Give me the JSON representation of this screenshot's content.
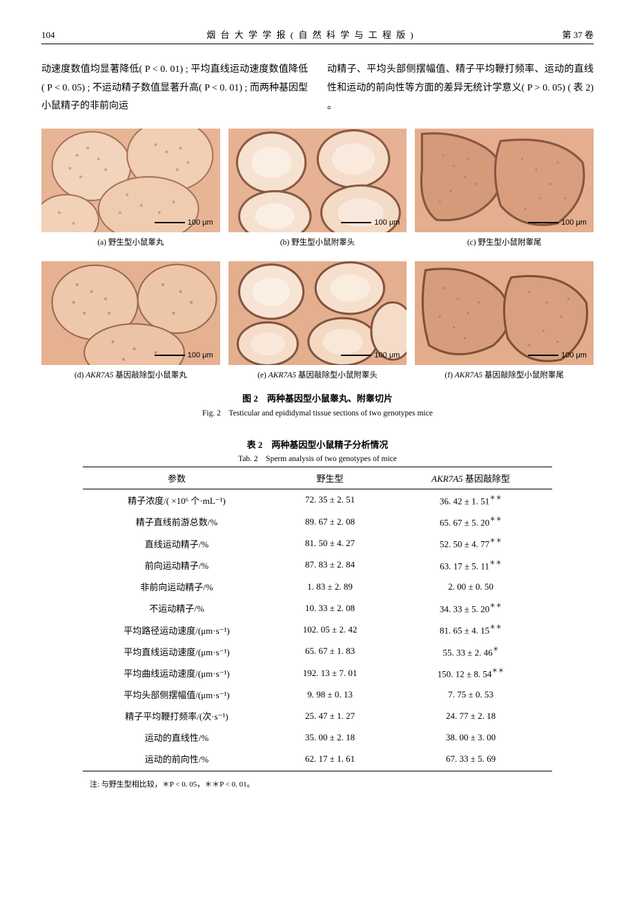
{
  "header": {
    "page_number": "104",
    "journal": "烟 台 大 学 学 报 ( 自 然 科 学 与 工 程 版 )",
    "volume": "第 37 卷"
  },
  "paragraph": {
    "left": "动速度数值均显著降低( P < 0. 01) ; 平均直线运动速度数值降低( P < 0. 05) ; 不运动精子数值显著升高( P < 0. 01) ; 而两种基因型小鼠精子的非前向运",
    "right": "动精子、平均头部侧摆幅值、精子平均鞭打频率、运动的直线性和运动的前向性等方面的差异无统计学意义( P > 0. 05) ( 表 2) 。"
  },
  "figure": {
    "scalebar_label": "100 μm",
    "subcaptions": [
      "(a) 野生型小鼠睾丸",
      "(b) 野生型小鼠附睾头",
      "(c) 野生型小鼠附睾尾",
      "(d) AKR7A5 基因敲除型小鼠睾丸",
      "(e) AKR7A5 基因敲除型小鼠附睾头",
      "(f) AKR7A5 基因敲除型小鼠附睾尾"
    ],
    "caption_cn": "图 2　两种基因型小鼠睾丸、附睾切片",
    "caption_en": "Fig. 2　Testicular and epididymal tissue sections of two genotypes mice",
    "image_colors": {
      "background": "#e8b89a",
      "tissue_light": "#f5dcc8",
      "tissue_mid": "#dba17f",
      "tissue_dark": "#a0654c",
      "border": "#7c523f"
    }
  },
  "table": {
    "caption_cn": "表 2　两种基因型小鼠精子分析情况",
    "caption_en": "Tab. 2　Sperm analysis of two genotypes of mice",
    "columns": [
      "参数",
      "野生型",
      "AKR7A5 基因敲除型"
    ],
    "rows": [
      {
        "param": "精子浓度/( ×10⁶ 个·mL⁻¹)",
        "wt": "72. 35 ± 2. 51",
        "ko": "36. 42 ± 1. 51＊＊"
      },
      {
        "param": "精子直线前游总数/%",
        "wt": "89. 67 ± 2. 08",
        "ko": "65. 67 ± 5. 20＊＊"
      },
      {
        "param": "直线运动精子/%",
        "wt": "81. 50 ± 4. 27",
        "ko": "52. 50 ± 4. 77＊＊"
      },
      {
        "param": "前向运动精子/%",
        "wt": "87. 83 ± 2. 84",
        "ko": "63. 17 ± 5. 11＊＊"
      },
      {
        "param": "非前向运动精子/%",
        "wt": "1. 83 ± 2. 89",
        "ko": "2. 00 ± 0. 50"
      },
      {
        "param": "不运动精子/%",
        "wt": "10. 33 ± 2. 08",
        "ko": "34. 33 ± 5. 20＊＊"
      },
      {
        "param": "平均路径运动速度/(μm·s⁻¹)",
        "wt": "102. 05 ± 2. 42",
        "ko": "81. 65 ± 4. 15＊＊"
      },
      {
        "param": "平均直线运动速度/(μm·s⁻¹)",
        "wt": "65. 67 ± 1. 83",
        "ko": "55. 33 ± 2. 46＊"
      },
      {
        "param": "平均曲线运动速度/(μm·s⁻¹)",
        "wt": "192. 13 ± 7. 01",
        "ko": "150. 12 ± 8. 54＊＊"
      },
      {
        "param": "平均头部侧摆幅值/(μm·s⁻¹)",
        "wt": "9. 98 ± 0. 13",
        "ko": "7. 75 ± 0. 53"
      },
      {
        "param": "精子平均鞭打频率/(次·s⁻¹)",
        "wt": "25. 47 ± 1. 27",
        "ko": "24. 77 ± 2. 18"
      },
      {
        "param": "运动的直线性/%",
        "wt": "35. 00 ± 2. 18",
        "ko": "38. 00 ± 3. 00"
      },
      {
        "param": "运动的前向性/%",
        "wt": "62. 17 ± 1. 61",
        "ko": "67. 33 ± 5. 69"
      }
    ],
    "note": "注: 与野生型相比较，＊P < 0. 05，＊＊P < 0. 01。"
  }
}
